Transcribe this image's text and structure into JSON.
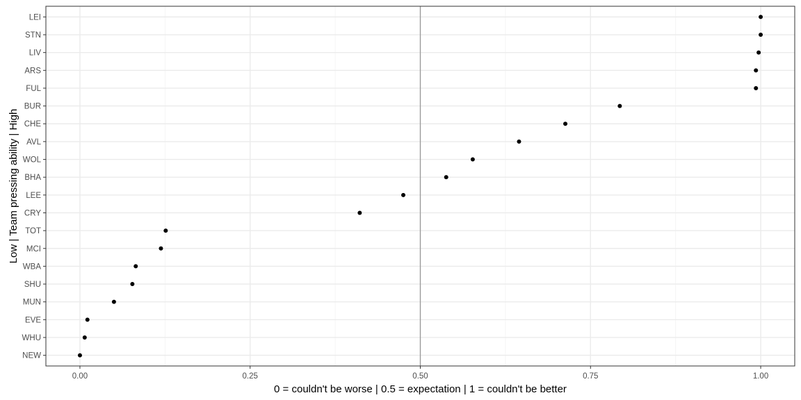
{
  "chart_data": {
    "type": "scatter",
    "title": "",
    "xlabel": "0 = couldn't be worse | 0.5 = expectation | 1 = couldn't be better",
    "ylabel": "Low | Team pressing ability | High",
    "xlim": [
      -0.05,
      1.05
    ],
    "x_ticks": [
      0.0,
      0.25,
      0.5,
      0.75,
      1.0
    ],
    "x_tick_labels": [
      "0.00",
      "0.25",
      "0.50",
      "0.75",
      "1.00"
    ],
    "reference_line_x": 0.5,
    "grid": true,
    "categories": [
      "NEW",
      "WHU",
      "EVE",
      "MUN",
      "SHU",
      "WBA",
      "MCI",
      "TOT",
      "CRY",
      "LEE",
      "BHA",
      "WOL",
      "AVL",
      "CHE",
      "BUR",
      "FUL",
      "ARS",
      "LIV",
      "STN",
      "LEI"
    ],
    "points": [
      {
        "team": "LEI",
        "value": 1.0
      },
      {
        "team": "STN",
        "value": 1.0
      },
      {
        "team": "LIV",
        "value": 0.997
      },
      {
        "team": "ARS",
        "value": 0.993
      },
      {
        "team": "FUL",
        "value": 0.993
      },
      {
        "team": "BUR",
        "value": 0.793
      },
      {
        "team": "CHE",
        "value": 0.713
      },
      {
        "team": "AVL",
        "value": 0.645
      },
      {
        "team": "WOL",
        "value": 0.577
      },
      {
        "team": "BHA",
        "value": 0.538
      },
      {
        "team": "LEE",
        "value": 0.475
      },
      {
        "team": "CRY",
        "value": 0.411
      },
      {
        "team": "TOT",
        "value": 0.126
      },
      {
        "team": "MCI",
        "value": 0.119
      },
      {
        "team": "WBA",
        "value": 0.082
      },
      {
        "team": "SHU",
        "value": 0.077
      },
      {
        "team": "MUN",
        "value": 0.05
      },
      {
        "team": "EVE",
        "value": 0.011
      },
      {
        "team": "WHU",
        "value": 0.007
      },
      {
        "team": "NEW",
        "value": 0.0
      }
    ],
    "colors": {
      "point": "#000000",
      "panel_border": "#333333",
      "grid_major": "#ebebeb",
      "grid_minor": "#f5f5f5",
      "reference_line": "#999999",
      "tick_text": "#4d4d4d"
    }
  }
}
